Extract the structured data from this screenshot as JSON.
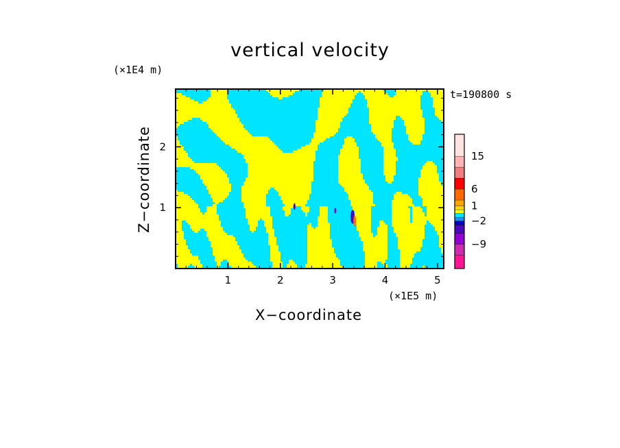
{
  "chart_data": {
    "type": "heatmap",
    "title": "vertical velocity",
    "xlabel": "X−coordinate",
    "ylabel": "Z−coordinate",
    "x_unit": "(×1E5 m)",
    "y_unit": "(×1E4 m)",
    "time_label": "t=190800 s",
    "xlim": [
      0,
      5.12
    ],
    "ylim": [
      0,
      2.95
    ],
    "x_ticks": [
      1,
      2,
      3,
      4,
      5
    ],
    "y_ticks": [
      1,
      2
    ],
    "x_tick_labels": [
      "1",
      "2",
      "3",
      "4",
      "5"
    ],
    "y_tick_labels": [
      "1",
      "2"
    ],
    "colorbar": {
      "tick_labels": [
        "15",
        "6",
        "1",
        "−2",
        "−9"
      ],
      "tick_values": [
        15,
        6,
        1,
        -2,
        -9
      ],
      "levels": [
        {
          "color": "#ff1493"
        },
        {
          "color": "#cc2db0"
        },
        {
          "color": "#9400d3"
        },
        {
          "color": "#4b0bbd"
        },
        {
          "color": "#0000cd"
        },
        {
          "color": "#1e90ff"
        },
        {
          "color": "#00e5ff"
        },
        {
          "color": "#ffff00"
        },
        {
          "color": "#ffd700"
        },
        {
          "color": "#ffa500"
        },
        {
          "color": "#ff6a00"
        },
        {
          "color": "#ff0000"
        },
        {
          "color": "#f08080"
        },
        {
          "color": "#ffb6b6"
        },
        {
          "color": "#ffe4e1"
        }
      ]
    },
    "dominant_colors": {
      "upward": "#ffff00",
      "downward": "#00e5ff"
    }
  }
}
